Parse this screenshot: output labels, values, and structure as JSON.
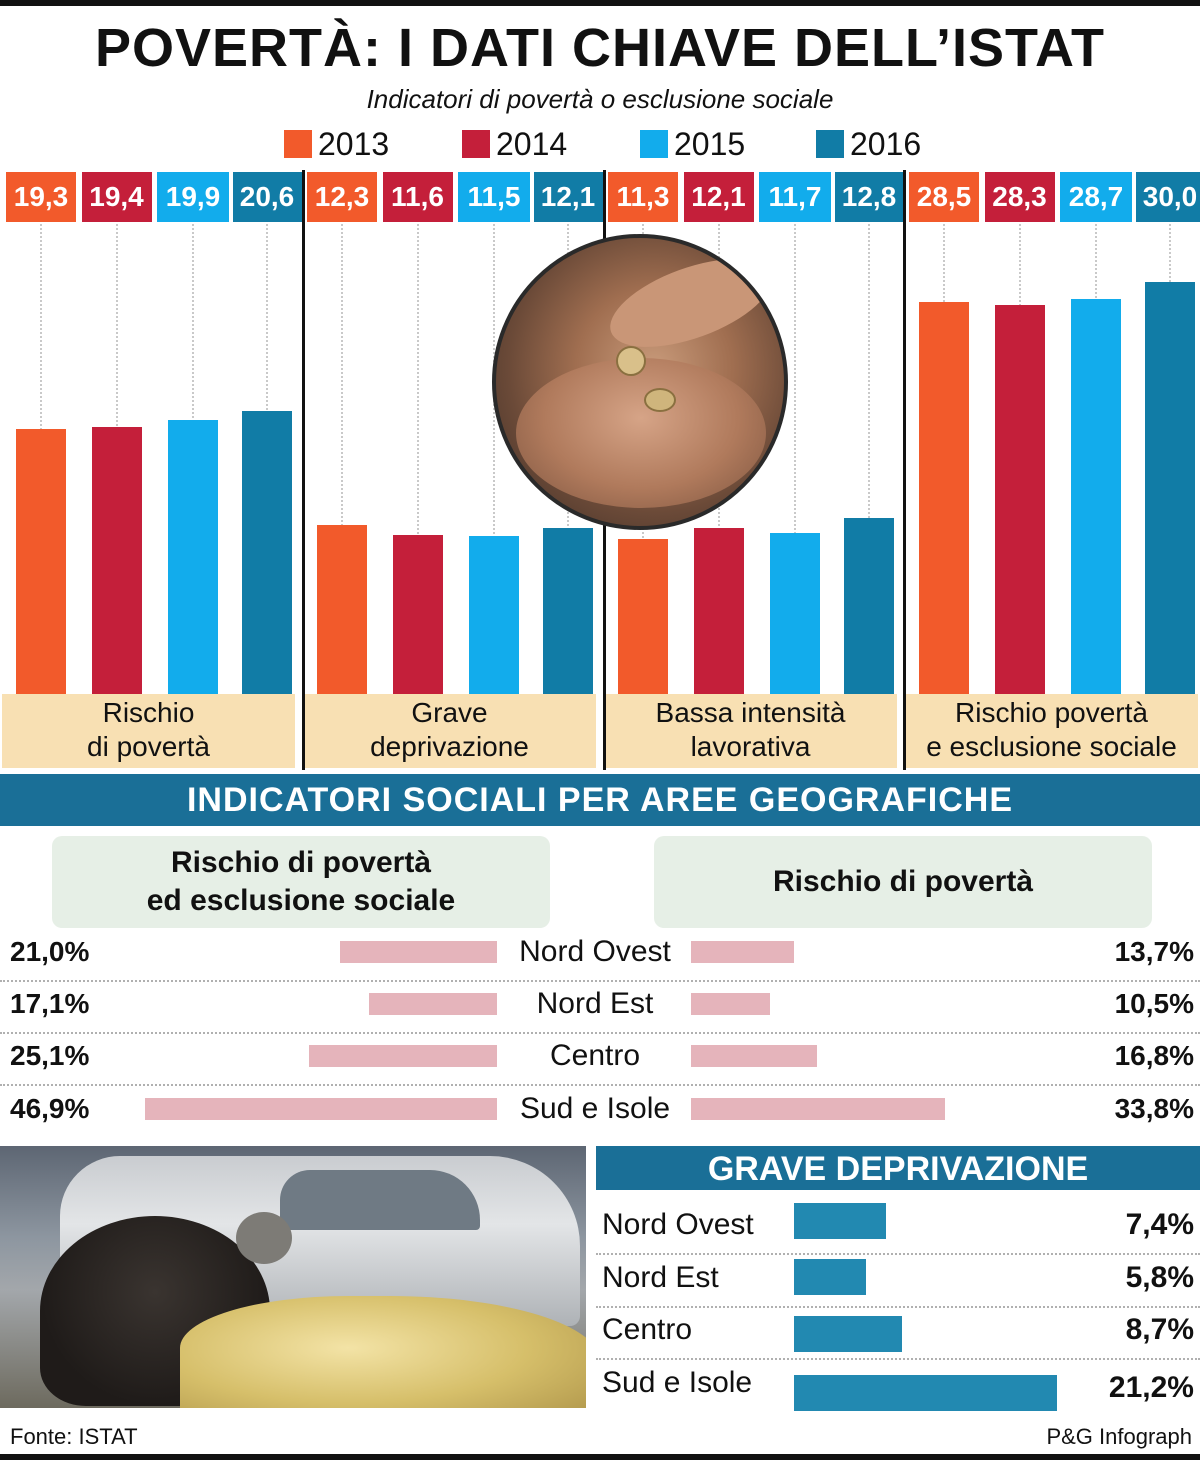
{
  "title": "POVERTÀ: I DATI CHIAVE DELL’ISTAT",
  "subtitle": "Indicatori di povertà o esclusione sociale",
  "colors": {
    "2013": "#f25a2b",
    "2014": "#c41f3a",
    "2015": "#12acec",
    "2016": "#117ca6"
  },
  "chart_data": [
    {
      "type": "bar",
      "title": "Indicatori di povertà o esclusione sociale",
      "categories": [
        "Rischio di povertà",
        "Grave deprivazione",
        "Bassa intensità lavorativa",
        "Rischio povertà e esclusione sociale"
      ],
      "category_lines": [
        [
          "Rischio",
          "di povertà"
        ],
        [
          "Grave",
          "deprivazione"
        ],
        [
          "Bassa intensità",
          "lavorativa"
        ],
        [
          "Rischio povertà",
          "e esclusione sociale"
        ]
      ],
      "series": [
        {
          "name": "2013",
          "values": [
            19.3,
            12.3,
            11.3,
            28.5
          ],
          "labels": [
            "19,3",
            "12,3",
            "11,3",
            "28,5"
          ]
        },
        {
          "name": "2014",
          "values": [
            19.4,
            11.6,
            12.1,
            28.3
          ],
          "labels": [
            "19,4",
            "11,6",
            "12,1",
            "28,3"
          ]
        },
        {
          "name": "2015",
          "values": [
            19.9,
            11.5,
            11.7,
            28.7
          ],
          "labels": [
            "19,9",
            "11,5",
            "11,7",
            "28,7"
          ]
        },
        {
          "name": "2016",
          "values": [
            20.6,
            12.1,
            12.8,
            30.0
          ],
          "labels": [
            "20,6",
            "12,1",
            "12,8",
            "30,0"
          ]
        }
      ],
      "legend": "top"
    },
    {
      "type": "bar",
      "title": "INDICATORI SOCIALI PER AREE GEOGRAFICHE",
      "categories": [
        "Nord Ovest",
        "Nord Est",
        "Centro",
        "Sud e Isole"
      ],
      "series": [
        {
          "name": "Rischio di povertà ed esclusione sociale",
          "name_lines": [
            "Rischio di povertà",
            "ed esclusione sociale"
          ],
          "values": [
            21.0,
            17.1,
            25.1,
            46.9
          ],
          "labels": [
            "21,0%",
            "17,1%",
            "25,1%",
            "46,9%"
          ]
        },
        {
          "name": "Rischio di povertà",
          "values": [
            13.7,
            10.5,
            16.8,
            33.8
          ],
          "labels": [
            "13,7%",
            "10,5%",
            "16,8%",
            "33,8%"
          ]
        }
      ]
    },
    {
      "type": "bar",
      "title": "GRAVE DEPRIVAZIONE",
      "categories": [
        "Nord Ovest",
        "Nord Est",
        "Centro",
        "Sud e Isole"
      ],
      "values": [
        7.4,
        5.8,
        8.7,
        21.2
      ],
      "labels": [
        "7,4%",
        "5,8%",
        "8,7%",
        "21,2%"
      ]
    }
  ],
  "footer": {
    "source": "Fonte: ISTAT",
    "credit": "P&G Infograph"
  }
}
